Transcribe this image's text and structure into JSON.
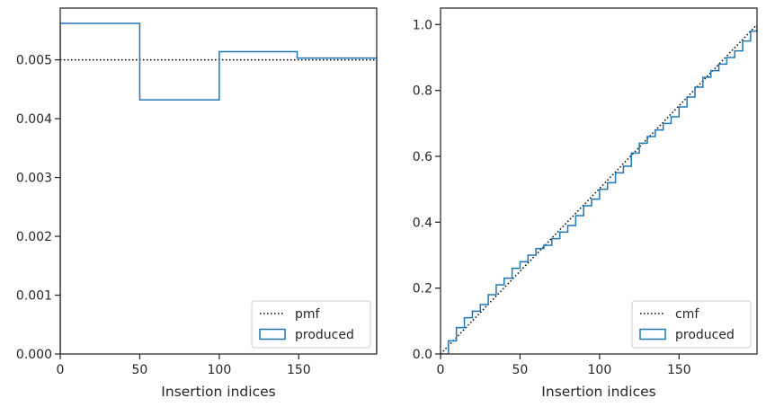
{
  "chart_data": [
    {
      "type": "step",
      "xlabel": "Insertion indices",
      "ylabel": "",
      "xlim": [
        0,
        199
      ],
      "ylim": [
        0,
        0.00588
      ],
      "xticks": [
        0,
        50,
        100,
        150
      ],
      "xtick_labels": [
        "0",
        "50",
        "100",
        "150"
      ],
      "yticks": [
        0,
        0.001,
        0.002,
        0.003,
        0.004,
        0.005
      ],
      "ytick_labels": [
        "0.000",
        "0.001",
        "0.002",
        "0.003",
        "0.004",
        "0.005"
      ],
      "legend_position": "bottom-right",
      "series": [
        {
          "name": "pmf",
          "style": "dotted",
          "color": "#000000",
          "x": [
            0,
            199
          ],
          "y": [
            0.005,
            0.005
          ]
        },
        {
          "name": "produced",
          "style": "step",
          "color": "#1f77b4",
          "bins": [
            0,
            50,
            100,
            149,
            199
          ],
          "values": [
            0.00562,
            0.00432,
            0.00514,
            0.00503
          ]
        }
      ]
    },
    {
      "type": "step",
      "xlabel": "Insertion indices",
      "ylabel": "",
      "xlim": [
        0,
        199
      ],
      "ylim": [
        0,
        1.05
      ],
      "xticks": [
        0,
        50,
        100,
        150
      ],
      "xtick_labels": [
        "0",
        "50",
        "100",
        "150"
      ],
      "yticks": [
        0,
        0.2,
        0.4,
        0.6,
        0.8,
        1.0
      ],
      "ytick_labels": [
        "0.0",
        "0.2",
        "0.4",
        "0.6",
        "0.8",
        "1.0"
      ],
      "legend_position": "bottom-right",
      "series": [
        {
          "name": "cmf",
          "style": "dotted",
          "color": "#000000",
          "x": [
            0,
            199
          ],
          "y": [
            0,
            1.0
          ]
        },
        {
          "name": "produced",
          "style": "step",
          "color": "#1f77b4",
          "x": [
            0,
            5,
            10,
            15,
            20,
            25,
            30,
            35,
            40,
            45,
            50,
            55,
            60,
            65,
            70,
            75,
            80,
            85,
            90,
            95,
            100,
            105,
            110,
            115,
            120,
            125,
            130,
            135,
            140,
            145,
            150,
            155,
            160,
            165,
            170,
            175,
            180,
            185,
            190,
            195,
            199
          ],
          "y": [
            0,
            0.04,
            0.08,
            0.11,
            0.13,
            0.15,
            0.18,
            0.21,
            0.23,
            0.26,
            0.28,
            0.3,
            0.32,
            0.33,
            0.35,
            0.37,
            0.39,
            0.42,
            0.45,
            0.47,
            0.5,
            0.52,
            0.55,
            0.57,
            0.61,
            0.64,
            0.66,
            0.68,
            0.7,
            0.72,
            0.75,
            0.78,
            0.81,
            0.84,
            0.86,
            0.88,
            0.9,
            0.92,
            0.95,
            0.98,
            1.0
          ]
        }
      ]
    }
  ]
}
